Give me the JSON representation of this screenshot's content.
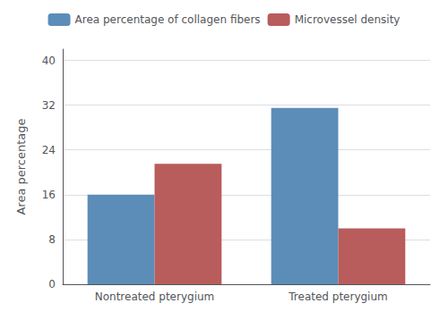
{
  "chart_data": {
    "type": "bar",
    "categories": [
      "Nontreated pterygium",
      "Treated pterygium"
    ],
    "series": [
      {
        "name": "Area percentage of collagen fibers",
        "color": "#5B8DB8",
        "values": [
          16.0,
          31.5
        ]
      },
      {
        "name": "Microvessel density",
        "color": "#B85C5C",
        "values": [
          21.5,
          10.0
        ]
      }
    ],
    "ylabel": "Area percentage",
    "ylim": [
      0,
      42
    ],
    "yticks": [
      0,
      8,
      16,
      24,
      32,
      40
    ],
    "grid": true,
    "legend": "top"
  }
}
